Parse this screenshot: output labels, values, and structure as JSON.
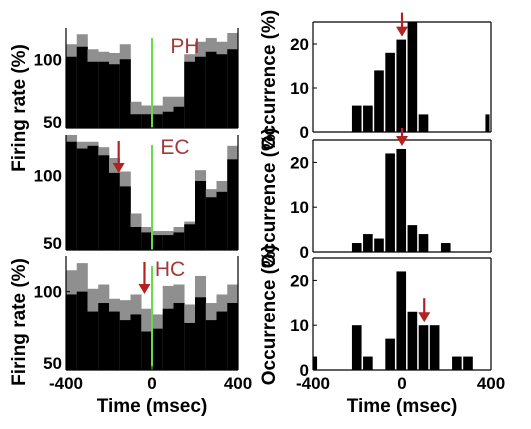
{
  "colors": {
    "bar": "#000000",
    "sem": "#8f8f8f",
    "onset_line": "#66dd44",
    "arrow": "#b22222",
    "label": "#a33a3a"
  },
  "labels": {
    "left_xlabel": "Time (msec)",
    "right_xlabel": "Time (msec)",
    "left_ylabel_top": "Firing rate (%)",
    "left_ylabel_bottom": "Firing rate (%)",
    "right_ylabel": "Occurrence (%)"
  },
  "chart_data": [
    {
      "type": "bar",
      "region": "PH",
      "ylabel": "Firing rate (%)",
      "x": [
        -375,
        -325,
        -275,
        -225,
        -175,
        -125,
        -75,
        -25,
        25,
        75,
        125,
        175,
        225,
        275,
        325,
        375
      ],
      "values": [
        102,
        110,
        98,
        98,
        96,
        100,
        56,
        56,
        56,
        58,
        62,
        98,
        102,
        106,
        104,
        108
      ],
      "upper": [
        112,
        120,
        108,
        106,
        105,
        112,
        66,
        63,
        63,
        70,
        70,
        104,
        114,
        117,
        114,
        121
      ],
      "xlim": [
        -400,
        400
      ],
      "ylim": [
        45,
        125
      ],
      "yticks": [
        100,
        50
      ],
      "arrow_x": null
    },
    {
      "type": "bar",
      "region": "EC",
      "ylabel": "Firing rate (%)",
      "x": [
        -375,
        -325,
        -275,
        -225,
        -175,
        -125,
        -75,
        -25,
        25,
        75,
        125,
        175,
        225,
        275,
        325,
        375
      ],
      "values": [
        125,
        120,
        122,
        115,
        102,
        92,
        62,
        58,
        56,
        56,
        58,
        64,
        96,
        84,
        88,
        112
      ],
      "upper": [
        130,
        125,
        125,
        121,
        113,
        103,
        72,
        62,
        59,
        59,
        62,
        66,
        104,
        90,
        96,
        122
      ],
      "xlim": [
        -400,
        400
      ],
      "ylim": [
        45,
        130
      ],
      "yticks": [
        100,
        50
      ],
      "arrow_x": -155
    },
    {
      "type": "bar",
      "region": "HC",
      "ylabel": "Firing rate (%)",
      "x": [
        -375,
        -325,
        -275,
        -225,
        -175,
        -125,
        -75,
        -25,
        25,
        75,
        125,
        175,
        225,
        275,
        325,
        375
      ],
      "values": [
        98,
        100,
        86,
        92,
        86,
        80,
        84,
        72,
        74,
        88,
        92,
        78,
        96,
        80,
        86,
        92
      ],
      "upper": [
        115,
        120,
        102,
        105,
        95,
        94,
        98,
        88,
        84,
        104,
        105,
        91,
        111,
        92,
        98,
        105
      ],
      "xlim": [
        -400,
        400
      ],
      "ylim": [
        45,
        125
      ],
      "yticks": [
        100,
        50
      ],
      "xticks": [
        -400,
        0,
        400
      ],
      "arrow_x": -35
    },
    {
      "type": "bar",
      "region": "PH",
      "ylabel": "Occurrence (%)",
      "x": [
        -200,
        -150,
        -100,
        -50,
        0,
        50,
        100,
        400
      ],
      "values": [
        6,
        6,
        14,
        18,
        21,
        25,
        4,
        4
      ],
      "xlim": [
        -400,
        400
      ],
      "ylim": [
        0,
        25
      ],
      "yticks": [
        0,
        10,
        20
      ],
      "arrow_x": 0
    },
    {
      "type": "bar",
      "region": "EC",
      "ylabel": "Occurrence (%)",
      "x": [
        -200,
        -150,
        -100,
        -50,
        0,
        50,
        100,
        200
      ],
      "values": [
        2,
        4,
        3,
        22,
        23,
        6,
        4,
        2
      ],
      "xlim": [
        -400,
        400
      ],
      "ylim": [
        0,
        25
      ],
      "yticks": [
        0,
        10,
        20
      ],
      "arrow_x": 0
    },
    {
      "type": "bar",
      "region": "HC",
      "ylabel": "Occurrence (%)",
      "x": [
        -400,
        -200,
        -150,
        -50,
        0,
        50,
        100,
        150,
        250,
        300
      ],
      "values": [
        3,
        10,
        3,
        7,
        22,
        13,
        10,
        10,
        3,
        3
      ],
      "xlim": [
        -400,
        400
      ],
      "ylim": [
        0,
        25
      ],
      "yticks": [
        0,
        10,
        20
      ],
      "xticks": [
        -400,
        0,
        400
      ],
      "arrow_x": 100
    }
  ]
}
